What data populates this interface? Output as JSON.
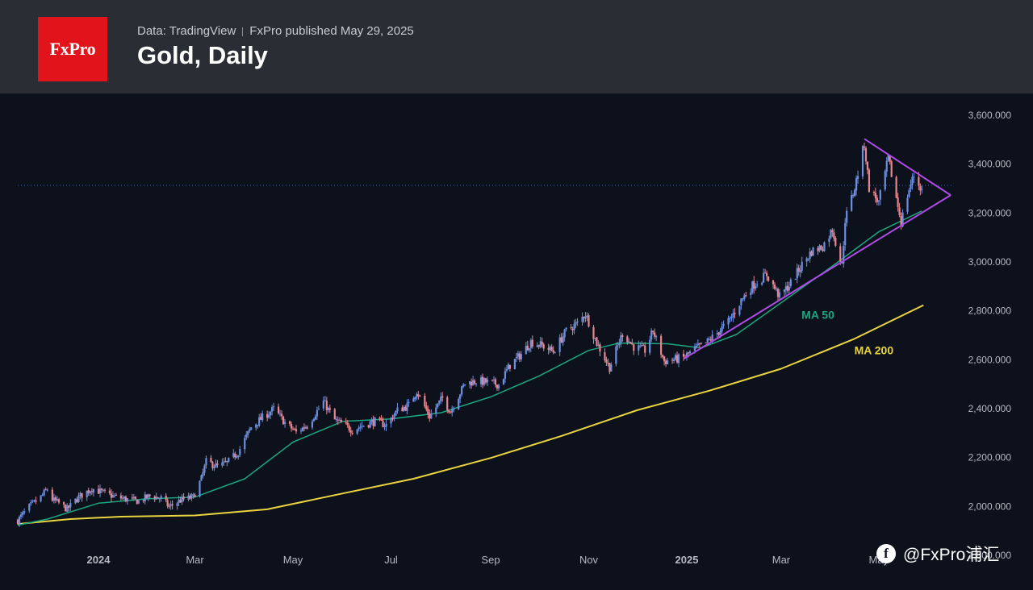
{
  "header": {
    "logo_text": "FxPro",
    "source": "Data: TradingView",
    "published": "FxPro published May 29, 2025",
    "title": "Gold, Daily"
  },
  "watermark": {
    "icon": "feed-icon",
    "text": "@FxPro浦汇"
  },
  "colors": {
    "background": "#0c111c",
    "header_bg": "#2a2d33",
    "logo_red": "#e2141b",
    "candle_up": "#6d8fe0",
    "candle_down": "#e8868f",
    "ma50": "#1aa67e",
    "ma200": "#e9d43f",
    "triangle": "#b14be8",
    "axis_text": "#b7bac2",
    "last_price_line": "#3d5a9a"
  },
  "chart_data": {
    "type": "candlestick",
    "instrument": "Gold",
    "timeframe": "Daily",
    "ylim": [
      1800,
      3600
    ],
    "y_ticks": [
      "3,600.000",
      "3,400.000",
      "3,200.000",
      "3,000.000",
      "2,800.000",
      "2,600.000",
      "2,400.000",
      "2,200.000",
      "2,000.000",
      "1,800.000"
    ],
    "x_ticks": [
      {
        "label": "2024",
        "date": "2024-01-01",
        "bold": true
      },
      {
        "label": "Mar",
        "date": "2024-03-01"
      },
      {
        "label": "May",
        "date": "2024-05-01"
      },
      {
        "label": "Jul",
        "date": "2024-07-01"
      },
      {
        "label": "Sep",
        "date": "2024-09-01"
      },
      {
        "label": "Nov",
        "date": "2024-11-01"
      },
      {
        "label": "2025",
        "date": "2025-01-01",
        "bold": true
      },
      {
        "label": "Mar",
        "date": "2025-03-01"
      },
      {
        "label": "May",
        "date": "2025-05-01"
      }
    ],
    "last_price": 3310,
    "price_path": [
      [
        "2023-11-13",
        1940
      ],
      [
        "2023-11-20",
        1995
      ],
      [
        "2023-11-27",
        2035
      ],
      [
        "2023-12-01",
        2068
      ],
      [
        "2023-12-04",
        2025
      ],
      [
        "2023-12-08",
        2010
      ],
      [
        "2023-12-13",
        1985
      ],
      [
        "2023-12-20",
        2035
      ],
      [
        "2023-12-28",
        2070
      ],
      [
        "2024-01-05",
        2050
      ],
      [
        "2024-01-12",
        2035
      ],
      [
        "2024-01-19",
        2025
      ],
      [
        "2024-01-26",
        2018
      ],
      [
        "2024-02-02",
        2040
      ],
      [
        "2024-02-09",
        2030
      ],
      [
        "2024-02-14",
        1995
      ],
      [
        "2024-02-21",
        2022
      ],
      [
        "2024-02-29",
        2035
      ],
      [
        "2024-03-05",
        2110
      ],
      [
        "2024-03-08",
        2180
      ],
      [
        "2024-03-15",
        2160
      ],
      [
        "2024-03-21",
        2175
      ],
      [
        "2024-03-28",
        2220
      ],
      [
        "2024-04-05",
        2320
      ],
      [
        "2024-04-12",
        2360
      ],
      [
        "2024-04-19",
        2395
      ],
      [
        "2024-04-26",
        2340
      ],
      [
        "2024-05-03",
        2300
      ],
      [
        "2024-05-10",
        2330
      ],
      [
        "2024-05-20",
        2425
      ],
      [
        "2024-05-27",
        2350
      ],
      [
        "2024-06-07",
        2310
      ],
      [
        "2024-06-14",
        2330
      ],
      [
        "2024-06-21",
        2345
      ],
      [
        "2024-06-28",
        2330
      ],
      [
        "2024-07-05",
        2390
      ],
      [
        "2024-07-12",
        2410
      ],
      [
        "2024-07-17",
        2470
      ],
      [
        "2024-07-25",
        2365
      ],
      [
        "2024-08-02",
        2440
      ],
      [
        "2024-08-07",
        2385
      ],
      [
        "2024-08-16",
        2500
      ],
      [
        "2024-08-23",
        2510
      ],
      [
        "2024-08-30",
        2505
      ],
      [
        "2024-09-06",
        2495
      ],
      [
        "2024-09-13",
        2575
      ],
      [
        "2024-09-20",
        2620
      ],
      [
        "2024-09-26",
        2670
      ],
      [
        "2024-10-03",
        2655
      ],
      [
        "2024-10-10",
        2630
      ],
      [
        "2024-10-18",
        2715
      ],
      [
        "2024-10-25",
        2745
      ],
      [
        "2024-10-30",
        2785
      ],
      [
        "2024-11-06",
        2665
      ],
      [
        "2024-11-14",
        2565
      ],
      [
        "2024-11-22",
        2705
      ],
      [
        "2024-11-29",
        2650
      ],
      [
        "2024-12-06",
        2635
      ],
      [
        "2024-12-11",
        2715
      ],
      [
        "2024-12-18",
        2590
      ],
      [
        "2024-12-30",
        2605
      ],
      [
        "2025-01-06",
        2640
      ],
      [
        "2025-01-13",
        2665
      ],
      [
        "2025-01-20",
        2705
      ],
      [
        "2025-01-28",
        2760
      ],
      [
        "2025-02-04",
        2840
      ],
      [
        "2025-02-11",
        2900
      ],
      [
        "2025-02-20",
        2945
      ],
      [
        "2025-02-28",
        2855
      ],
      [
        "2025-03-07",
        2910
      ],
      [
        "2025-03-14",
        2985
      ],
      [
        "2025-03-20",
        3040
      ],
      [
        "2025-03-27",
        3060
      ],
      [
        "2025-04-02",
        3130
      ],
      [
        "2025-04-08",
        2980
      ],
      [
        "2025-04-10",
        3170
      ],
      [
        "2025-04-16",
        3300
      ],
      [
        "2025-04-22",
        3480
      ],
      [
        "2025-04-25",
        3300
      ],
      [
        "2025-05-01",
        3240
      ],
      [
        "2025-05-07",
        3420
      ],
      [
        "2025-05-15",
        3160
      ],
      [
        "2025-05-20",
        3295
      ],
      [
        "2025-05-23",
        3350
      ],
      [
        "2025-05-28",
        3290
      ]
    ],
    "ma50_path": [
      [
        "2023-11-13",
        1920
      ],
      [
        "2023-12-01",
        1945
      ],
      [
        "2024-01-01",
        2010
      ],
      [
        "2024-02-01",
        2028
      ],
      [
        "2024-03-01",
        2035
      ],
      [
        "2024-04-01",
        2110
      ],
      [
        "2024-05-01",
        2260
      ],
      [
        "2024-06-01",
        2345
      ],
      [
        "2024-07-01",
        2355
      ],
      [
        "2024-08-01",
        2380
      ],
      [
        "2024-09-01",
        2445
      ],
      [
        "2024-10-01",
        2530
      ],
      [
        "2024-11-01",
        2635
      ],
      [
        "2024-11-20",
        2665
      ],
      [
        "2024-12-20",
        2662
      ],
      [
        "2025-01-10",
        2645
      ],
      [
        "2025-02-01",
        2700
      ],
      [
        "2025-03-01",
        2830
      ],
      [
        "2025-04-01",
        2975
      ],
      [
        "2025-05-01",
        3120
      ],
      [
        "2025-05-28",
        3205
      ]
    ],
    "ma200_path": [
      [
        "2023-11-13",
        1925
      ],
      [
        "2023-12-15",
        1945
      ],
      [
        "2024-01-15",
        1955
      ],
      [
        "2024-03-01",
        1960
      ],
      [
        "2024-04-15",
        1985
      ],
      [
        "2024-06-01",
        2050
      ],
      [
        "2024-07-15",
        2110
      ],
      [
        "2024-09-01",
        2195
      ],
      [
        "2024-10-15",
        2285
      ],
      [
        "2024-12-01",
        2390
      ],
      [
        "2025-01-15",
        2470
      ],
      [
        "2025-03-01",
        2560
      ],
      [
        "2025-04-15",
        2680
      ],
      [
        "2025-05-29",
        2820
      ]
    ],
    "triangle": {
      "upper": [
        [
          "2025-04-22",
          3500
        ],
        [
          "2025-06-15",
          3270
        ]
      ],
      "lower": [
        [
          "2024-12-30",
          2600
        ],
        [
          "2025-06-15",
          3270
        ]
      ]
    },
    "annotations": [
      {
        "text": "MA 50",
        "date": "2025-03-24",
        "y": 2765,
        "color": "#1aa67e"
      },
      {
        "text": "MA 200",
        "date": "2025-04-28",
        "y": 2620,
        "color": "#e9d43f"
      }
    ]
  }
}
